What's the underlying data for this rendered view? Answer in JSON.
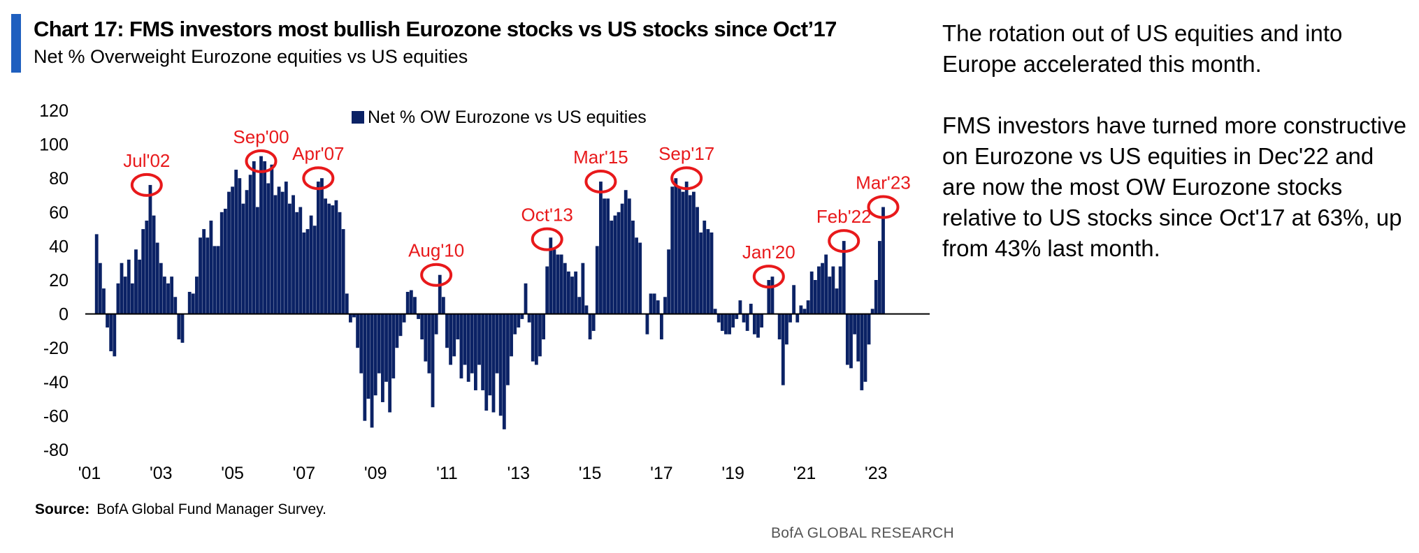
{
  "header": {
    "title": "Chart 17: FMS investors most bullish Eurozone stocks vs US stocks since Oct’17",
    "subtitle": "Net % Overweight Eurozone equities vs US equities"
  },
  "commentary": {
    "paragraph1": "The rotation out of US equities and into Europe accelerated this month.",
    "paragraph2": "FMS investors have turned more constructive on Eurozone vs US equities in Dec'22 and are now the most OW Eurozone stocks relative to US stocks since Oct'17 at 63%, up from 43% last month."
  },
  "footer": {
    "source_label": "Source:",
    "source_text": "BofA Global Fund Manager Survey.",
    "brand": "BofA GLOBAL RESEARCH"
  },
  "chart_data": {
    "type": "bar",
    "colors": {
      "bars": "#0b2265",
      "annotations": "#e8191b",
      "axis": "#000000"
    },
    "ylim": [
      -80,
      120
    ],
    "yticks": [
      120,
      100,
      80,
      60,
      40,
      20,
      0,
      -20,
      -40,
      -60,
      -80
    ],
    "xlim": [
      2001.0,
      2024.5
    ],
    "xticks": [
      {
        "label": "'01",
        "x": 2001.0
      },
      {
        "label": "'03",
        "x": 2003.0
      },
      {
        "label": "'05",
        "x": 2005.0
      },
      {
        "label": "'07",
        "x": 2007.0
      },
      {
        "label": "'09",
        "x": 2009.0
      },
      {
        "label": "'11",
        "x": 2011.0
      },
      {
        "label": "'13",
        "x": 2013.0
      },
      {
        "label": "'15",
        "x": 2015.0
      },
      {
        "label": "'17",
        "x": 2017.0
      },
      {
        "label": "'19",
        "x": 2019.0
      },
      {
        "label": "'21",
        "x": 2021.0
      },
      {
        "label": "'23",
        "x": 2023.0
      }
    ],
    "grid": false,
    "legend": {
      "position": "top-center"
    },
    "series": [
      {
        "name": "Net % OW Eurozone vs US equities",
        "values": [
          [
            2001.2,
            47
          ],
          [
            2001.3,
            30
          ],
          [
            2001.4,
            15
          ],
          [
            2001.5,
            -8
          ],
          [
            2001.6,
            -22
          ],
          [
            2001.7,
            -25
          ],
          [
            2001.8,
            18
          ],
          [
            2001.9,
            30
          ],
          [
            2002.0,
            22
          ],
          [
            2002.1,
            32
          ],
          [
            2002.2,
            18
          ],
          [
            2002.3,
            38
          ],
          [
            2002.4,
            32
          ],
          [
            2002.5,
            50
          ],
          [
            2002.6,
            55
          ],
          [
            2002.7,
            76
          ],
          [
            2002.8,
            58
          ],
          [
            2002.9,
            42
          ],
          [
            2003.0,
            30
          ],
          [
            2003.1,
            22
          ],
          [
            2003.2,
            18
          ],
          [
            2003.3,
            22
          ],
          [
            2003.4,
            10
          ],
          [
            2003.5,
            -15
          ],
          [
            2003.6,
            -17
          ],
          [
            2003.7,
            0
          ],
          [
            2003.8,
            13
          ],
          [
            2003.9,
            12
          ],
          [
            2004.0,
            22
          ],
          [
            2004.1,
            45
          ],
          [
            2004.2,
            50
          ],
          [
            2004.3,
            45
          ],
          [
            2004.4,
            55
          ],
          [
            2004.5,
            40
          ],
          [
            2004.6,
            40
          ],
          [
            2004.7,
            60
          ],
          [
            2004.8,
            62
          ],
          [
            2004.9,
            72
          ],
          [
            2005.0,
            75
          ],
          [
            2005.1,
            85
          ],
          [
            2005.2,
            80
          ],
          [
            2005.3,
            65
          ],
          [
            2005.4,
            73
          ],
          [
            2005.5,
            82
          ],
          [
            2005.6,
            90
          ],
          [
            2005.7,
            63
          ],
          [
            2005.8,
            93
          ],
          [
            2005.9,
            90
          ],
          [
            2006.0,
            77
          ],
          [
            2006.1,
            88
          ],
          [
            2006.2,
            70
          ],
          [
            2006.3,
            75
          ],
          [
            2006.4,
            72
          ],
          [
            2006.5,
            78
          ],
          [
            2006.6,
            65
          ],
          [
            2006.7,
            70
          ],
          [
            2006.8,
            60
          ],
          [
            2006.9,
            63
          ],
          [
            2007.0,
            48
          ],
          [
            2007.1,
            50
          ],
          [
            2007.2,
            58
          ],
          [
            2007.3,
            52
          ],
          [
            2007.4,
            78
          ],
          [
            2007.5,
            80
          ],
          [
            2007.6,
            68
          ],
          [
            2007.7,
            65
          ],
          [
            2007.8,
            64
          ],
          [
            2007.9,
            67
          ],
          [
            2008.0,
            60
          ],
          [
            2008.1,
            50
          ],
          [
            2008.2,
            12
          ],
          [
            2008.3,
            -5
          ],
          [
            2008.4,
            -2
          ],
          [
            2008.5,
            -20
          ],
          [
            2008.6,
            -35
          ],
          [
            2008.7,
            -63
          ],
          [
            2008.8,
            -50
          ],
          [
            2008.9,
            -67
          ],
          [
            2009.0,
            -48
          ],
          [
            2009.1,
            -35
          ],
          [
            2009.2,
            -52
          ],
          [
            2009.3,
            -40
          ],
          [
            2009.4,
            -58
          ],
          [
            2009.5,
            -38
          ],
          [
            2009.6,
            -20
          ],
          [
            2009.7,
            -13
          ],
          [
            2009.8,
            -5
          ],
          [
            2009.9,
            13
          ],
          [
            2010.0,
            14
          ],
          [
            2010.1,
            10
          ],
          [
            2010.2,
            -3
          ],
          [
            2010.3,
            -15
          ],
          [
            2010.4,
            -28
          ],
          [
            2010.5,
            -35
          ],
          [
            2010.6,
            -55
          ],
          [
            2010.7,
            -12
          ],
          [
            2010.8,
            23
          ],
          [
            2010.9,
            10
          ],
          [
            2011.0,
            -20
          ],
          [
            2011.1,
            -30
          ],
          [
            2011.2,
            -25
          ],
          [
            2011.3,
            -15
          ],
          [
            2011.4,
            -38
          ],
          [
            2011.5,
            -30
          ],
          [
            2011.6,
            -40
          ],
          [
            2011.7,
            -35
          ],
          [
            2011.8,
            -45
          ],
          [
            2011.9,
            -30
          ],
          [
            2012.0,
            -45
          ],
          [
            2012.1,
            -57
          ],
          [
            2012.2,
            -48
          ],
          [
            2012.3,
            -58
          ],
          [
            2012.4,
            -35
          ],
          [
            2012.5,
            -60
          ],
          [
            2012.6,
            -68
          ],
          [
            2012.7,
            -42
          ],
          [
            2012.8,
            -25
          ],
          [
            2012.9,
            -12
          ],
          [
            2013.0,
            -8
          ],
          [
            2013.1,
            -3
          ],
          [
            2013.2,
            18
          ],
          [
            2013.3,
            -5
          ],
          [
            2013.4,
            -28
          ],
          [
            2013.5,
            -30
          ],
          [
            2013.6,
            -25
          ],
          [
            2013.7,
            -15
          ],
          [
            2013.8,
            28
          ],
          [
            2013.9,
            45
          ],
          [
            2014.0,
            38
          ],
          [
            2014.1,
            35
          ],
          [
            2014.2,
            35
          ],
          [
            2014.3,
            30
          ],
          [
            2014.4,
            25
          ],
          [
            2014.5,
            22
          ],
          [
            2014.6,
            25
          ],
          [
            2014.7,
            10
          ],
          [
            2014.8,
            30
          ],
          [
            2014.9,
            5
          ],
          [
            2015.0,
            -15
          ],
          [
            2015.1,
            -10
          ],
          [
            2015.2,
            40
          ],
          [
            2015.3,
            78
          ],
          [
            2015.4,
            68
          ],
          [
            2015.5,
            68
          ],
          [
            2015.6,
            55
          ],
          [
            2015.7,
            58
          ],
          [
            2015.8,
            60
          ],
          [
            2015.9,
            65
          ],
          [
            2016.0,
            73
          ],
          [
            2016.1,
            68
          ],
          [
            2016.2,
            55
          ],
          [
            2016.3,
            45
          ],
          [
            2016.4,
            42
          ],
          [
            2016.5,
            0
          ],
          [
            2016.6,
            -12
          ],
          [
            2016.7,
            12
          ],
          [
            2016.8,
            12
          ],
          [
            2016.9,
            8
          ],
          [
            2017.0,
            -15
          ],
          [
            2017.1,
            10
          ],
          [
            2017.2,
            38
          ],
          [
            2017.3,
            75
          ],
          [
            2017.4,
            80
          ],
          [
            2017.5,
            75
          ],
          [
            2017.6,
            72
          ],
          [
            2017.7,
            78
          ],
          [
            2017.8,
            70
          ],
          [
            2017.9,
            72
          ],
          [
            2018.0,
            63
          ],
          [
            2018.1,
            48
          ],
          [
            2018.2,
            55
          ],
          [
            2018.3,
            50
          ],
          [
            2018.4,
            48
          ],
          [
            2018.5,
            3
          ],
          [
            2018.6,
            -5
          ],
          [
            2018.7,
            -10
          ],
          [
            2018.8,
            -12
          ],
          [
            2018.9,
            -12
          ],
          [
            2019.0,
            -8
          ],
          [
            2019.1,
            -3
          ],
          [
            2019.2,
            8
          ],
          [
            2019.3,
            -5
          ],
          [
            2019.4,
            -10
          ],
          [
            2019.5,
            6
          ],
          [
            2019.6,
            -12
          ],
          [
            2019.7,
            -14
          ],
          [
            2019.8,
            -8
          ],
          [
            2019.9,
            0
          ],
          [
            2020.0,
            20
          ],
          [
            2020.1,
            22
          ],
          [
            2020.2,
            0
          ],
          [
            2020.3,
            -15
          ],
          [
            2020.4,
            -42
          ],
          [
            2020.5,
            -18
          ],
          [
            2020.6,
            -5
          ],
          [
            2020.7,
            17
          ],
          [
            2020.8,
            -5
          ],
          [
            2020.9,
            5
          ],
          [
            2021.0,
            3
          ],
          [
            2021.1,
            8
          ],
          [
            2021.2,
            25
          ],
          [
            2021.3,
            20
          ],
          [
            2021.4,
            28
          ],
          [
            2021.5,
            30
          ],
          [
            2021.6,
            35
          ],
          [
            2021.7,
            22
          ],
          [
            2021.8,
            28
          ],
          [
            2021.9,
            15
          ],
          [
            2022.0,
            28
          ],
          [
            2022.1,
            43
          ],
          [
            2022.2,
            -30
          ],
          [
            2022.3,
            -32
          ],
          [
            2022.4,
            -12
          ],
          [
            2022.5,
            -28
          ],
          [
            2022.6,
            -45
          ],
          [
            2022.7,
            -40
          ],
          [
            2022.8,
            -18
          ],
          [
            2022.9,
            3
          ],
          [
            2023.0,
            20
          ],
          [
            2023.1,
            43
          ],
          [
            2023.2,
            63
          ]
        ]
      }
    ],
    "annotations": [
      {
        "label": "Jul'02",
        "x": 2002.6,
        "y": 76
      },
      {
        "label": "Sep'00",
        "x": 2005.8,
        "y": 90
      },
      {
        "label": "Apr'07",
        "x": 2007.4,
        "y": 80
      },
      {
        "label": "Aug'10",
        "x": 2010.7,
        "y": 23
      },
      {
        "label": "Oct'13",
        "x": 2013.8,
        "y": 44
      },
      {
        "label": "Mar'15",
        "x": 2015.3,
        "y": 78
      },
      {
        "label": "Sep'17",
        "x": 2017.7,
        "y": 80
      },
      {
        "label": "Jan'20",
        "x": 2020.0,
        "y": 22
      },
      {
        "label": "Feb'22",
        "x": 2022.1,
        "y": 43
      },
      {
        "label": "Mar'23",
        "x": 2023.2,
        "y": 63
      }
    ]
  }
}
